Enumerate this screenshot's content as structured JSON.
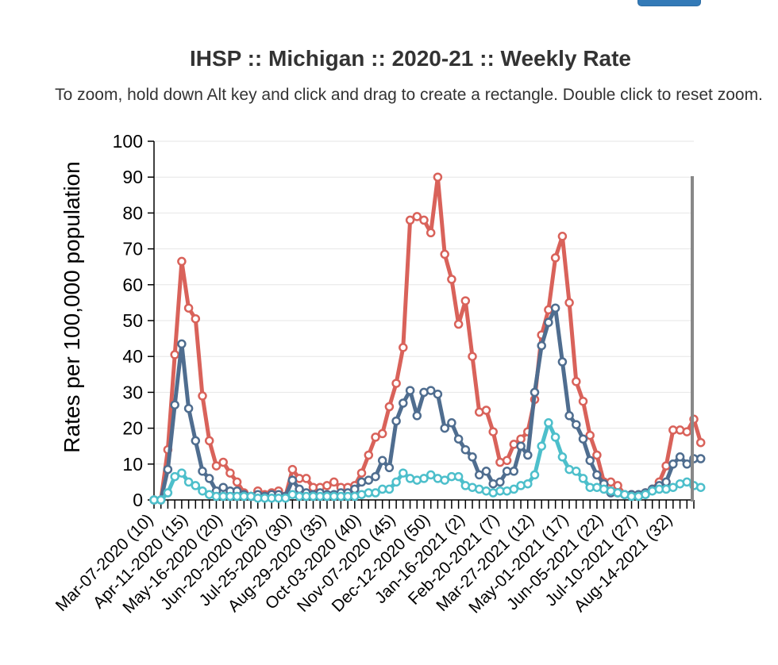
{
  "header": {
    "button_label": ""
  },
  "chart_data": {
    "type": "line",
    "title": "IHSP :: Michigan :: 2020-21 :: Weekly Rate",
    "subtitle": "To zoom, hold down Alt key and click and drag to create a rectangle. Double click to reset zoom.",
    "xlabel": "",
    "ylabel": "Rates per 100,000 population",
    "ylim": [
      0,
      100
    ],
    "y_ticks": [
      0,
      10,
      20,
      30,
      40,
      50,
      60,
      70,
      80,
      90,
      100
    ],
    "x_tick_labels": [
      {
        "week": 10,
        "label": "Mar-07-2020 (10)"
      },
      {
        "week": 15,
        "label": "Apr-11-2020 (15)"
      },
      {
        "week": 20,
        "label": "May-16-2020 (20)"
      },
      {
        "week": 25,
        "label": "Jun-20-2020 (25)"
      },
      {
        "week": 30,
        "label": "Jul-25-2020 (30)"
      },
      {
        "week": 35,
        "label": "Aug-29-2020 (35)"
      },
      {
        "week": 40,
        "label": "Oct-03-2020 (40)"
      },
      {
        "week": 45,
        "label": "Nov-07-2020 (45)"
      },
      {
        "week": 50,
        "label": "Dec-12-2020 (50)"
      },
      {
        "week": 55,
        "label": "Jan-16-2021 (2)"
      },
      {
        "week": 60,
        "label": "Feb-20-2021 (7)"
      },
      {
        "week": 65,
        "label": "Mar-27-2021 (12)"
      },
      {
        "week": 70,
        "label": "May-01-2021 (17)"
      },
      {
        "week": 75,
        "label": "Jun-05-2021 (22)"
      },
      {
        "week": 80,
        "label": "Jul-10-2021 (27)"
      },
      {
        "week": 85,
        "label": "Aug-14-2021 (32)"
      }
    ],
    "x_start": 10,
    "x_end": 88,
    "grid": true,
    "legend": "none",
    "series": [
      {
        "color": "#d9625a",
        "values": [
          0,
          0,
          14,
          40.5,
          66.5,
          53.5,
          50.5,
          29,
          16.5,
          9.5,
          10.5,
          7.5,
          5,
          2,
          1,
          2.5,
          1.5,
          2,
          2.5,
          1,
          8.5,
          6,
          6,
          3.5,
          3.5,
          4,
          5,
          3.5,
          3.5,
          4,
          7.5,
          12.5,
          17.5,
          18.5,
          26,
          32.5,
          42.5,
          78,
          79,
          78,
          74.5,
          90,
          68.5,
          61.5,
          49,
          55.5,
          40,
          24.5,
          25,
          19,
          10.5,
          11,
          15.5,
          17,
          19,
          28,
          46,
          53,
          67.5,
          73.5,
          55,
          33,
          27.5,
          18,
          12.5,
          5,
          5,
          4,
          1.5,
          1.5,
          1,
          2,
          3,
          5,
          9.5,
          19.5,
          19.5,
          19,
          22.5,
          16
        ]
      },
      {
        "color": "#4f6d8f",
        "values": [
          0,
          0,
          8.5,
          26.5,
          43.5,
          25.5,
          16.5,
          8,
          6,
          2.5,
          3.5,
          2.5,
          2.5,
          1.5,
          1,
          1.5,
          1,
          1.5,
          1.5,
          1,
          5.5,
          3,
          2,
          1.5,
          2,
          1.5,
          1.5,
          2,
          2,
          3,
          5,
          5.5,
          6.5,
          11,
          9,
          22,
          27,
          30.5,
          23.5,
          30,
          30.5,
          29.5,
          20,
          21.5,
          17,
          14,
          12,
          7,
          8,
          4.5,
          5,
          8,
          8,
          15,
          12.5,
          30,
          43,
          49.5,
          53.5,
          38.5,
          23.5,
          21,
          17,
          11,
          7,
          4.5,
          2,
          2,
          1.5,
          1.5,
          1.5,
          2,
          3,
          4,
          5,
          10,
          12,
          10,
          11.5,
          11.5
        ]
      },
      {
        "color": "#4dbfcb",
        "values": [
          0,
          0,
          2,
          6.5,
          7.5,
          5,
          4,
          2.5,
          1.5,
          1,
          1,
          1,
          1,
          1,
          1,
          0.5,
          0.5,
          0.5,
          0.5,
          0.5,
          1.5,
          1,
          1,
          1,
          1,
          1,
          1,
          1,
          1,
          1,
          1.5,
          2,
          2,
          3,
          3,
          5,
          7.5,
          6,
          5.5,
          6,
          7,
          6,
          5.5,
          6.5,
          6.5,
          4,
          3.5,
          3,
          2.5,
          2,
          2.5,
          2.5,
          3,
          4,
          4.5,
          7,
          15,
          21.5,
          17.5,
          12,
          8.5,
          8,
          6,
          3.5,
          3.5,
          3,
          2.5,
          2,
          1.5,
          1,
          1,
          1.5,
          2.5,
          3,
          3,
          3.5,
          4.5,
          5,
          4,
          3.5
        ]
      }
    ]
  }
}
